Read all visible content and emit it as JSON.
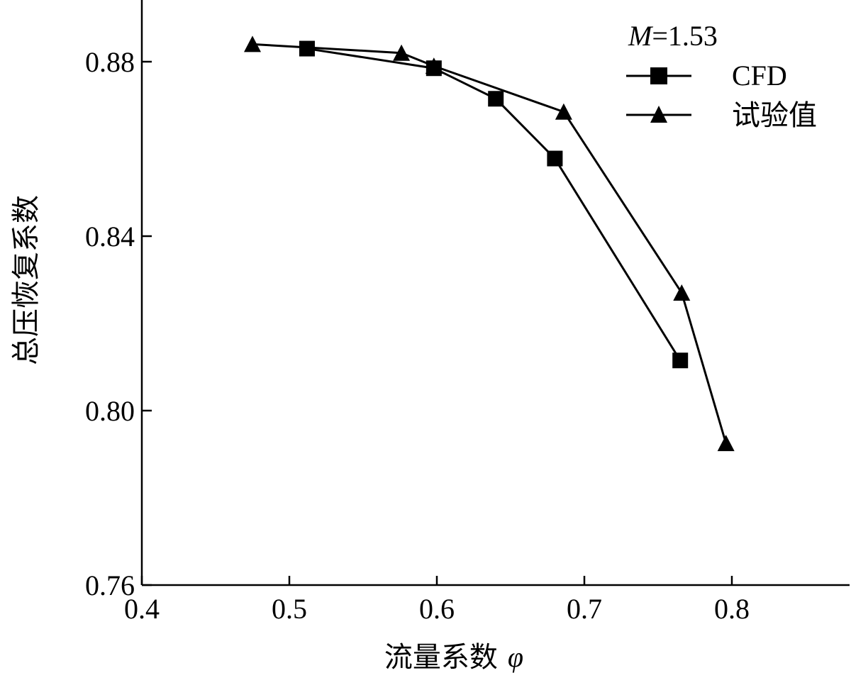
{
  "chart_data": {
    "type": "line",
    "xlabel": "流量系数",
    "xlabel_symbol": "φ",
    "ylabel": "总压恢复系数",
    "xlim": [
      0.4,
      0.87
    ],
    "ylim": [
      0.76,
      0.89
    ],
    "x_ticks": [
      "0.4",
      "0.5",
      "0.6",
      "0.7",
      "0.8"
    ],
    "y_ticks": [
      "0.76",
      "0.80",
      "0.84",
      "0.88"
    ],
    "legend_placement": "top-right",
    "legend_title_var": "M",
    "legend_title_value": "=1.53",
    "series": [
      {
        "name": "CFD",
        "marker": "square",
        "x": [
          0.512,
          0.598,
          0.64,
          0.68,
          0.765
        ],
        "y": [
          0.883,
          0.8785,
          0.8715,
          0.8578,
          0.8115
        ]
      },
      {
        "name": "试验值",
        "marker": "triangle",
        "x": [
          0.475,
          0.576,
          0.598,
          0.686,
          0.766,
          0.796
        ],
        "y": [
          0.884,
          0.882,
          0.879,
          0.8685,
          0.827,
          0.7925
        ]
      }
    ]
  }
}
